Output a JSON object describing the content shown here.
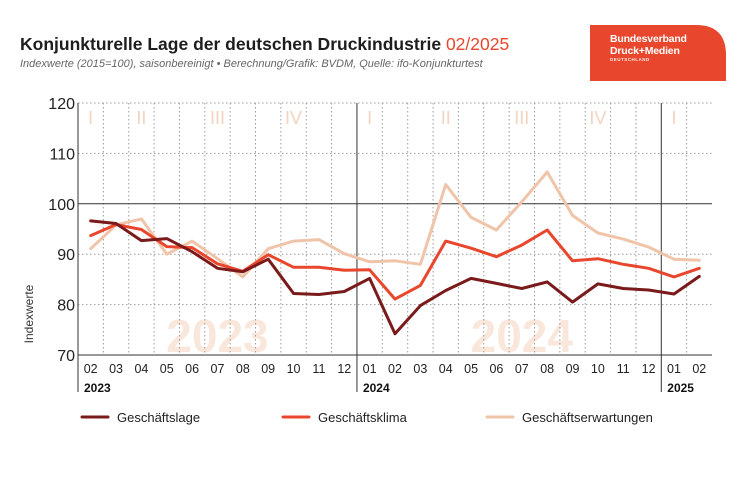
{
  "header": {
    "title": "Konjunkturelle Lage der deutschen Druckindustrie",
    "title_period": "02/2025",
    "subtitle": "Indexwerte (2015=100), saisonbereinigt • Berechnung/Grafik: BVDM, Quelle: ifo-Konjunkturtest",
    "accent_color": "#e8472d"
  },
  "logo": {
    "line1": "Bundesverband",
    "line2": "Druck+Medien",
    "line3": "DEUTSCHLAND",
    "color": "#e8472d"
  },
  "chart_data": {
    "type": "line",
    "title": "Konjunkturelle Lage der deutschen Druckindustrie 02/2025",
    "ylabel": "Indexwerte",
    "ylim": [
      70,
      120
    ],
    "yticks": [
      70,
      80,
      90,
      100,
      110,
      120
    ],
    "reference_line": 100,
    "grid": true,
    "legend_position": "bottom",
    "x": [
      "02",
      "03",
      "04",
      "05",
      "06",
      "07",
      "08",
      "09",
      "10",
      "11",
      "12",
      "01",
      "02",
      "03",
      "04",
      "05",
      "06",
      "07",
      "08",
      "09",
      "10",
      "11",
      "12",
      "01",
      "02"
    ],
    "years": [
      {
        "label": "2023",
        "start_index": 0
      },
      {
        "label": "2024",
        "start_index": 11
      },
      {
        "label": "2025",
        "start_index": 23
      }
    ],
    "year_watermarks": [
      {
        "label": "2023",
        "center_index": 5
      },
      {
        "label": "2024",
        "center_index": 17
      }
    ],
    "quarters": [
      {
        "label": "I",
        "start_index": -0.5,
        "end_index": 0.5
      },
      {
        "label": "II",
        "start_index": 0.5,
        "end_index": 3.5
      },
      {
        "label": "III",
        "start_index": 3.5,
        "end_index": 6.5
      },
      {
        "label": "IV",
        "start_index": 6.5,
        "end_index": 9.5
      },
      {
        "label": "I",
        "start_index": 9.5,
        "end_index": 12.5
      },
      {
        "label": "II",
        "start_index": 12.5,
        "end_index": 15.5
      },
      {
        "label": "III",
        "start_index": 15.5,
        "end_index": 18.5
      },
      {
        "label": "IV",
        "start_index": 18.5,
        "end_index": 21.5
      },
      {
        "label": "I",
        "start_index": 21.5,
        "end_index": 24.5
      }
    ],
    "series": [
      {
        "name": "Geschäftslage",
        "color": "#7a1a1a",
        "values": [
          96.6,
          96.1,
          92.7,
          93.1,
          90.5,
          87.2,
          86.5,
          89.0,
          82.2,
          82.0,
          82.6,
          85.2,
          74.2,
          79.8,
          82.8,
          85.2,
          84.2,
          83.2,
          84.5,
          80.5,
          84.1,
          83.2,
          82.9,
          82.1,
          85.6
        ]
      },
      {
        "name": "Geschäftsklima",
        "color": "#e8472d",
        "values": [
          93.7,
          95.9,
          94.9,
          91.5,
          91.3,
          88.1,
          86.6,
          89.9,
          87.4,
          87.4,
          86.8,
          86.9,
          81.1,
          83.8,
          92.6,
          91.2,
          89.5,
          91.8,
          94.8,
          88.7,
          89.1,
          88.0,
          87.2,
          85.5,
          87.2
        ]
      },
      {
        "name": "Geschäftserwartungen",
        "color": "#f0c4a9",
        "values": [
          91.1,
          95.8,
          97.0,
          90.0,
          92.6,
          89.1,
          85.5,
          91.1,
          92.6,
          92.9,
          90.1,
          88.5,
          88.7,
          88.0,
          103.8,
          97.3,
          94.8,
          100.4,
          106.3,
          97.7,
          94.2,
          93.0,
          91.4,
          89.0,
          88.8
        ]
      }
    ]
  }
}
